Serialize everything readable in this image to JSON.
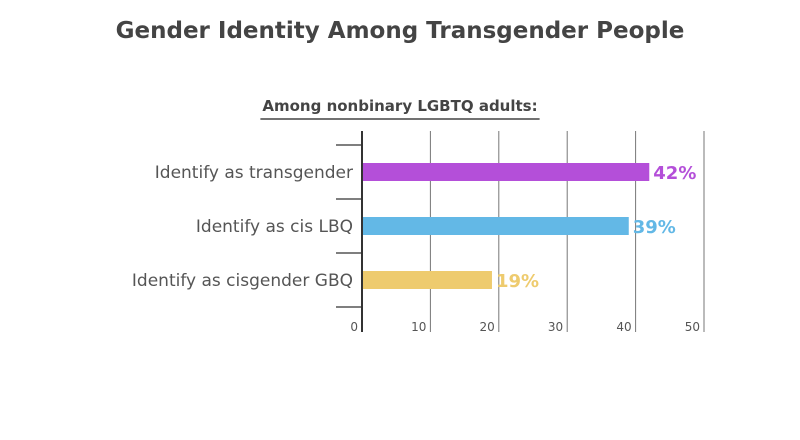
{
  "chart_data": {
    "type": "bar",
    "orientation": "horizontal",
    "title": "Gender Identity Among Transgender People",
    "subtitle": "Among nonbinary LGBTQ adults:",
    "categories": [
      "Identify as transgender",
      "Identify as cis LBQ",
      "Identify as cisgender GBQ"
    ],
    "values": [
      42,
      39,
      19
    ],
    "data_labels": [
      "42%",
      "39%",
      "19%"
    ],
    "colors": [
      "#b44fd9",
      "#63b8e6",
      "#eecb6e"
    ],
    "xlim": [
      0,
      50
    ],
    "x_ticks": [
      "0",
      "10",
      "20",
      "30",
      "40",
      "50"
    ],
    "grid": true,
    "legend": "none"
  }
}
